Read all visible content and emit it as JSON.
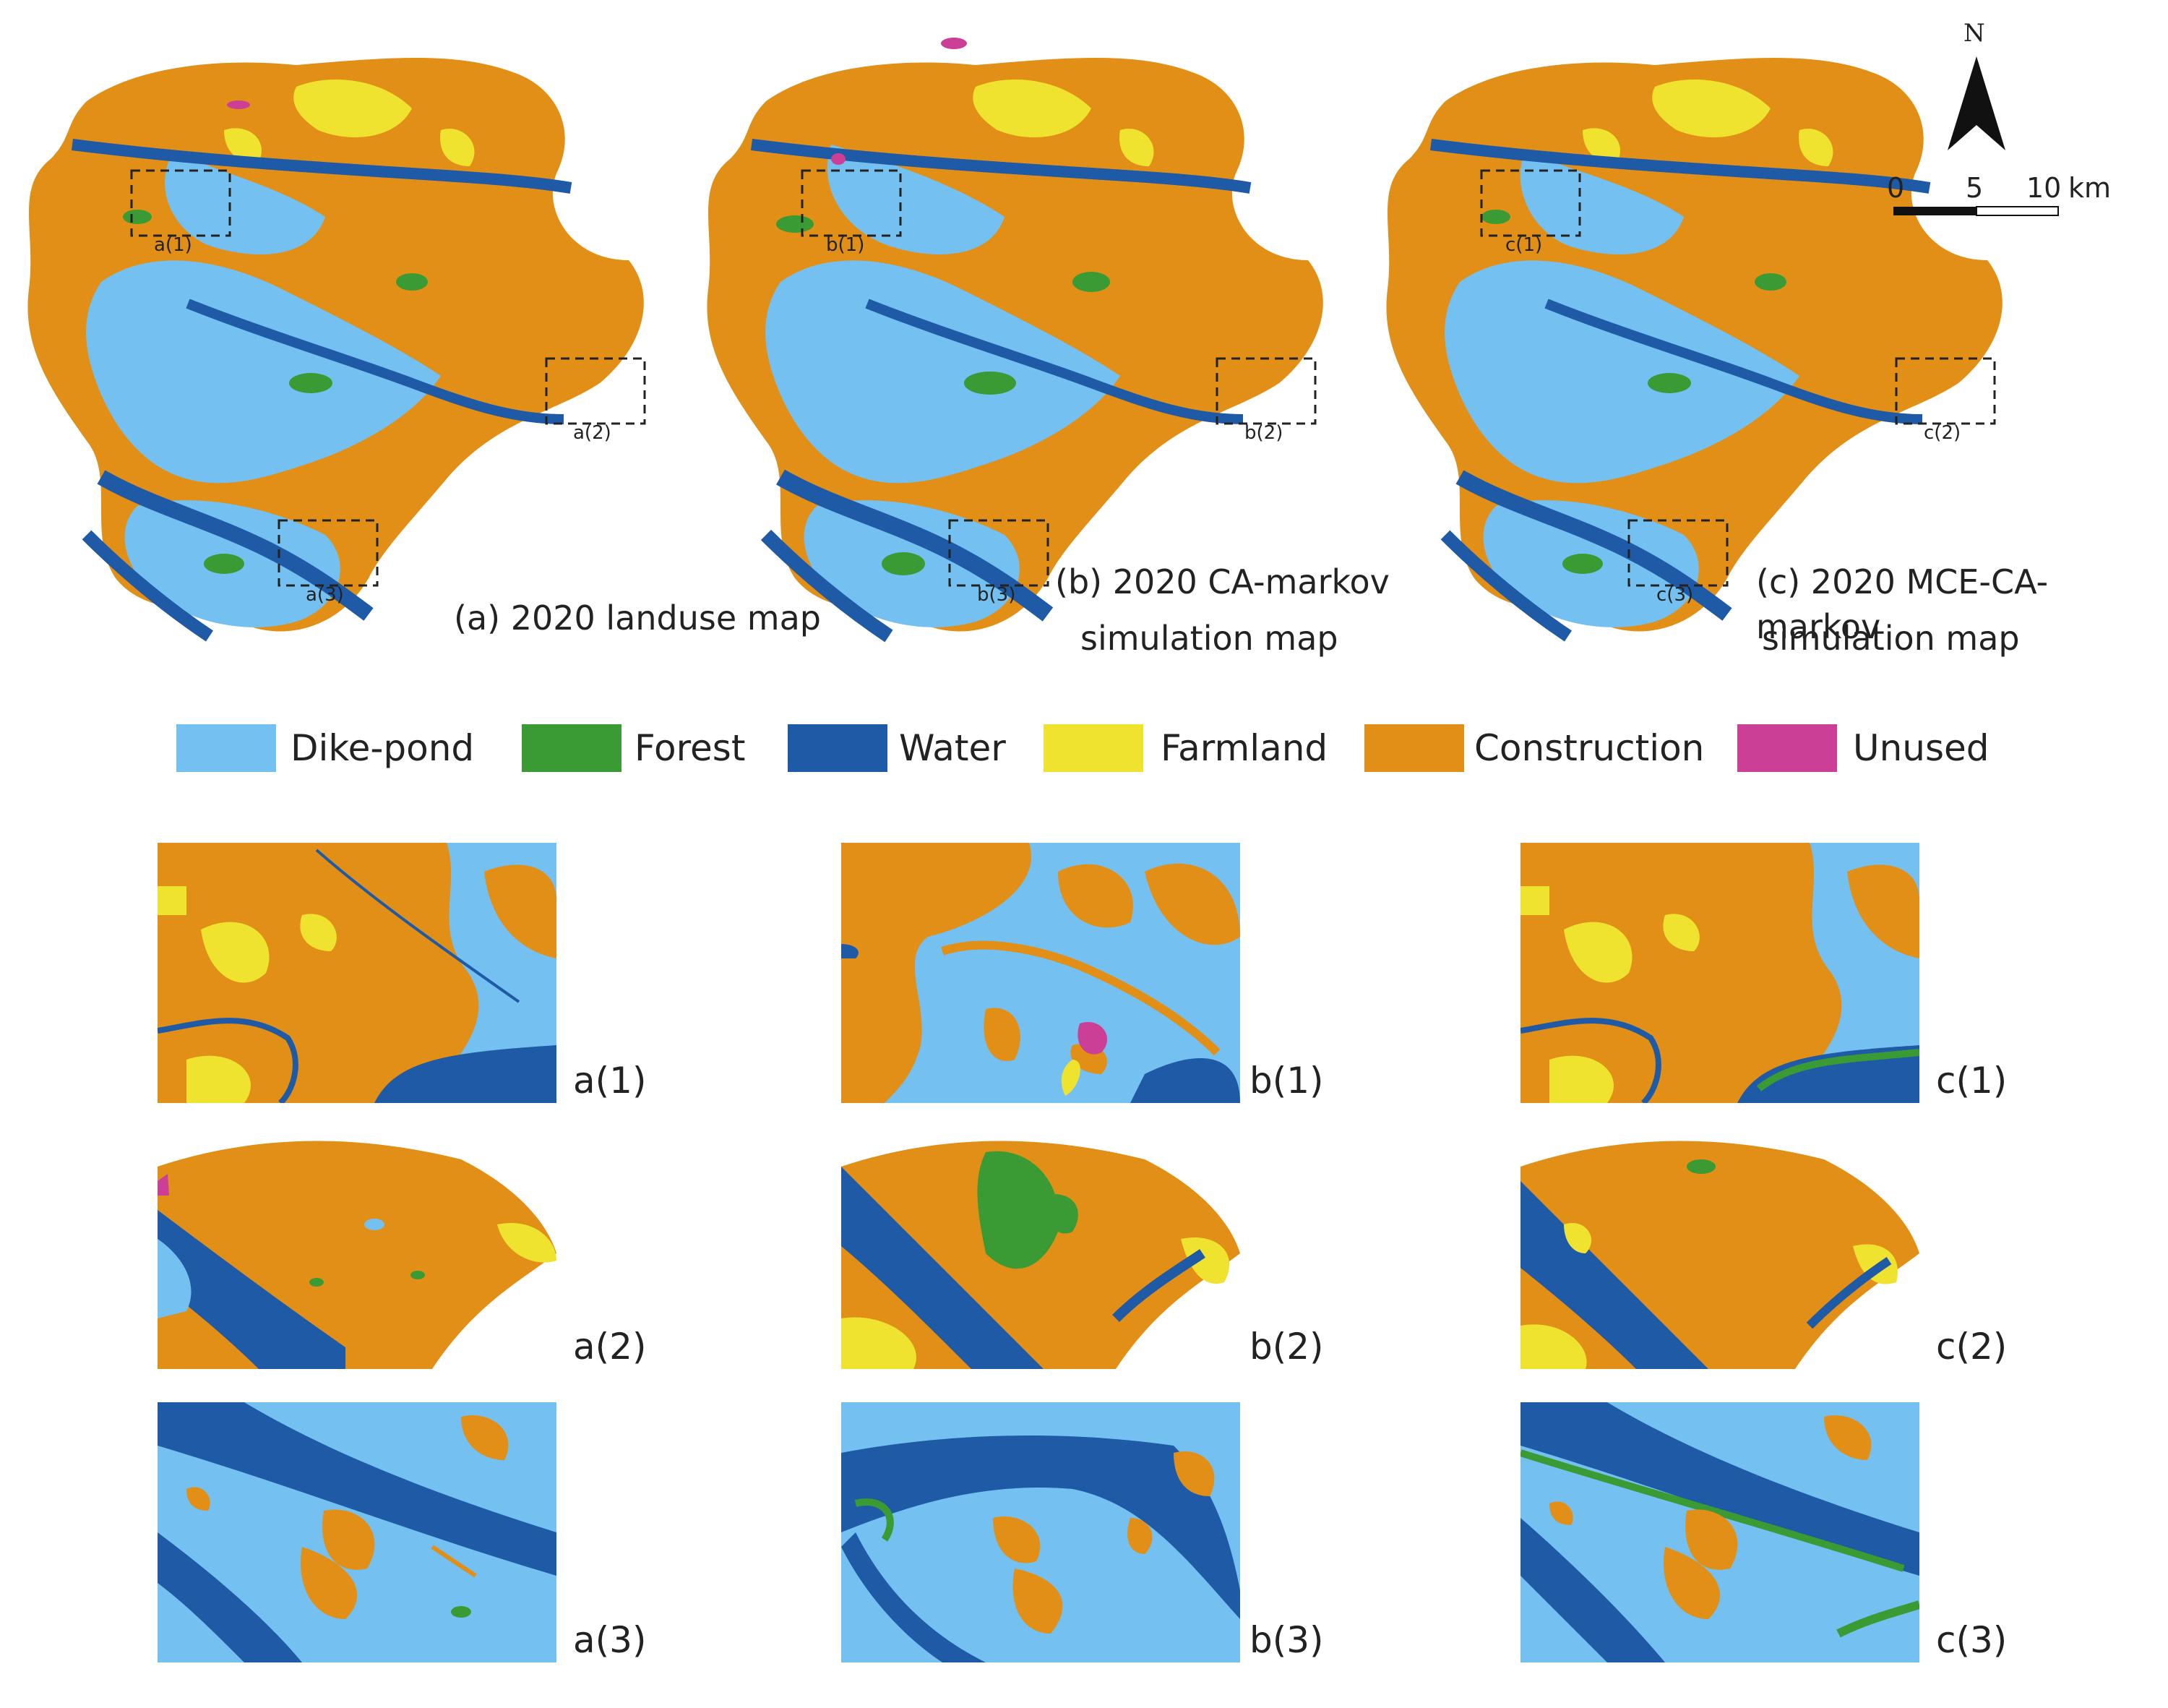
{
  "colors": {
    "dike_pond": "#74c1f1",
    "forest": "#3a9a33",
    "water": "#1f5aa6",
    "farmland": "#efe32f",
    "construction": "#e28f17",
    "unused": "#cc3f96"
  },
  "maps": [
    {
      "caption_line1": "(a) 2020 landuse map",
      "caption_line2": "",
      "box_labels": [
        "a(1)",
        "a(2)",
        "a(3)"
      ]
    },
    {
      "caption_line1": "(b) 2020 CA-markov",
      "caption_line2": "simulation map",
      "box_labels": [
        "b(1)",
        "b(2)",
        "b(3)"
      ]
    },
    {
      "caption_line1": "(c) 2020 MCE-CA-markov",
      "caption_line2": "simulation map",
      "box_labels": [
        "c(1)",
        "c(2)",
        "c(3)"
      ]
    }
  ],
  "north_arrow": {
    "label": "N"
  },
  "scale_bar": {
    "ticks": [
      "0",
      "5",
      "10"
    ],
    "unit": "km"
  },
  "legend": [
    {
      "label": "Dike-pond",
      "color": "#74c1f1"
    },
    {
      "label": "Forest",
      "color": "#3a9a33"
    },
    {
      "label": "Water",
      "color": "#1f5aa6"
    },
    {
      "label": "Farmland",
      "color": "#efe32f"
    },
    {
      "label": "Construction",
      "color": "#e28f17"
    },
    {
      "label": "Unused",
      "color": "#cc3f96"
    }
  ],
  "insets": {
    "row1": [
      "a(1)",
      "b(1)",
      "c(1)"
    ],
    "row2": [
      "a(2)",
      "b(2)",
      "c(2)"
    ],
    "row3": [
      "a(3)",
      "b(3)",
      "c(3)"
    ]
  }
}
